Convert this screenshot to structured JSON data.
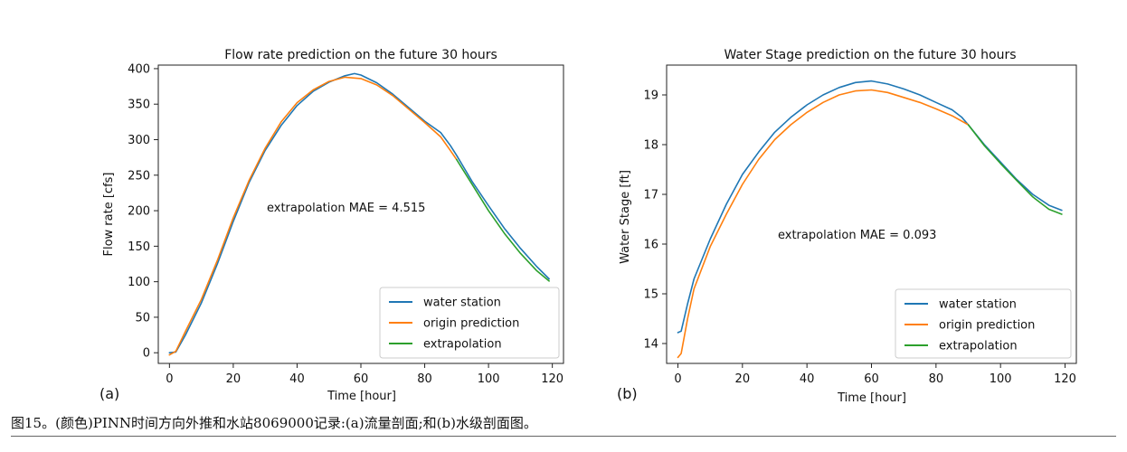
{
  "figure_caption": "图15。(颜色)PINN时间方向外推和水站8069000记录:(a)流量剖面;和(b)水级剖面图。",
  "colors": {
    "water_station": "#1f77b4",
    "origin_prediction": "#ff7f0e",
    "extrapolation": "#2ca02c"
  },
  "chart_data": [
    {
      "type": "line",
      "panel_label": "(a)",
      "title": "Flow rate prediction on the future 30 hours",
      "xlabel": "Time [hour]",
      "ylabel": "Flow rate [cfs]",
      "xlim": [
        -3.5,
        123.5
      ],
      "ylim": [
        -15,
        405
      ],
      "xticks": [
        0,
        20,
        40,
        60,
        80,
        100,
        120
      ],
      "yticks": [
        0,
        50,
        100,
        150,
        200,
        250,
        300,
        350,
        400
      ],
      "annotation": "extrapolation MAE = 4.515",
      "legend": [
        "water station",
        "origin prediction",
        "extrapolation"
      ],
      "series": [
        {
          "name": "water station",
          "x": [
            0,
            2,
            5,
            10,
            15,
            20,
            25,
            30,
            35,
            40,
            45,
            50,
            55,
            58,
            60,
            65,
            70,
            75,
            80,
            85,
            88,
            90,
            95,
            100,
            105,
            110,
            115,
            119
          ],
          "y": [
            0,
            1,
            25,
            70,
            125,
            185,
            240,
            285,
            320,
            348,
            368,
            381,
            390,
            393,
            391,
            380,
            364,
            345,
            326,
            310,
            292,
            278,
            240,
            207,
            175,
            147,
            122,
            104
          ]
        },
        {
          "name": "origin prediction",
          "x": [
            0,
            2,
            5,
            10,
            15,
            20,
            25,
            30,
            35,
            40,
            45,
            50,
            55,
            60,
            65,
            70,
            75,
            80,
            85,
            88,
            90
          ],
          "y": [
            -3,
            2,
            30,
            75,
            130,
            190,
            243,
            288,
            325,
            352,
            370,
            382,
            388,
            386,
            377,
            362,
            343,
            324,
            304,
            285,
            272
          ]
        },
        {
          "name": "extrapolation",
          "x": [
            90,
            95,
            100,
            105,
            110,
            115,
            119
          ],
          "y": [
            272,
            236,
            200,
            168,
            140,
            116,
            101
          ]
        }
      ]
    },
    {
      "type": "line",
      "panel_label": "(b)",
      "title": "Water Stage prediction on the future 30 hours",
      "xlabel": "Time [hour]",
      "ylabel": "Water Stage [ft]",
      "xlim": [
        -3.5,
        123.5
      ],
      "ylim": [
        13.6,
        19.6
      ],
      "xticks": [
        0,
        20,
        40,
        60,
        80,
        100,
        120
      ],
      "yticks": [
        14,
        15,
        16,
        17,
        18,
        19
      ],
      "annotation": "extrapolation MAE = 0.093",
      "legend": [
        "water station",
        "origin prediction",
        "extrapolation"
      ],
      "series": [
        {
          "name": "water station",
          "x": [
            0,
            1,
            3,
            5,
            10,
            15,
            20,
            25,
            30,
            35,
            40,
            45,
            50,
            55,
            60,
            65,
            70,
            75,
            80,
            85,
            88,
            90,
            95,
            100,
            105,
            110,
            115,
            119
          ],
          "y": [
            14.22,
            14.25,
            14.8,
            15.3,
            16.1,
            16.8,
            17.4,
            17.85,
            18.25,
            18.55,
            18.8,
            19.0,
            19.15,
            19.25,
            19.28,
            19.22,
            19.12,
            19.0,
            18.85,
            18.7,
            18.55,
            18.4,
            18.0,
            17.65,
            17.3,
            17.0,
            16.78,
            16.68
          ]
        },
        {
          "name": "origin prediction",
          "x": [
            0,
            1,
            3,
            5,
            10,
            15,
            20,
            25,
            30,
            35,
            40,
            45,
            50,
            55,
            60,
            65,
            70,
            75,
            80,
            85,
            90
          ],
          "y": [
            13.72,
            13.8,
            14.5,
            15.1,
            15.95,
            16.6,
            17.2,
            17.7,
            18.1,
            18.4,
            18.65,
            18.85,
            19.0,
            19.08,
            19.1,
            19.05,
            18.95,
            18.85,
            18.72,
            18.58,
            18.4
          ]
        },
        {
          "name": "extrapolation",
          "x": [
            90,
            95,
            100,
            105,
            110,
            115,
            119
          ],
          "y": [
            18.4,
            17.98,
            17.62,
            17.28,
            16.95,
            16.7,
            16.6
          ]
        }
      ]
    }
  ]
}
